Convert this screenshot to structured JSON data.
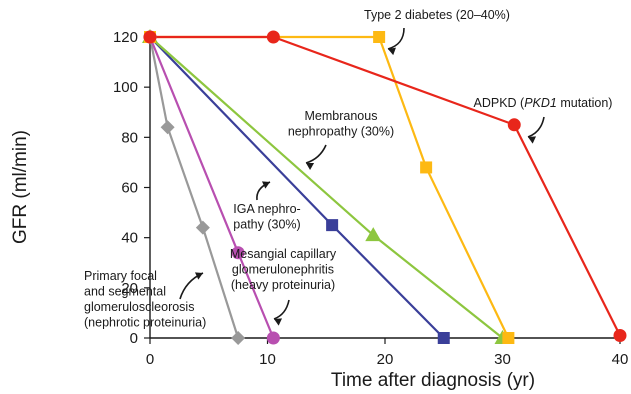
{
  "chart_data": {
    "type": "line",
    "xlabel": "Time after diagnosis (yr)",
    "ylabel": "GFR (ml/min)",
    "xlim": [
      0,
      40
    ],
    "ylim": [
      0,
      120
    ],
    "xticks": [
      0,
      10,
      20,
      30,
      40
    ],
    "yticks": [
      0,
      20,
      40,
      60,
      80,
      100,
      120
    ],
    "grid": false,
    "legend": "none",
    "series": [
      {
        "key": "adpkd",
        "color": "#e8261b",
        "marker": "circle",
        "points": [
          {
            "x": 0,
            "y": 120
          },
          {
            "x": 10.5,
            "y": 120
          },
          {
            "x": 31,
            "y": 85
          },
          {
            "x": 40,
            "y": 1
          }
        ]
      },
      {
        "key": "diabetes",
        "color": "#fdb913",
        "marker": "square",
        "points": [
          {
            "x": 0,
            "y": 120
          },
          {
            "x": 19.5,
            "y": 120
          },
          {
            "x": 23.5,
            "y": 68
          },
          {
            "x": 30.5,
            "y": 0
          }
        ]
      },
      {
        "key": "membranous",
        "color": "#8dc63f",
        "marker": "triangle",
        "points": [
          {
            "x": 0,
            "y": 120
          },
          {
            "x": 19,
            "y": 41
          },
          {
            "x": 30,
            "y": 0
          }
        ]
      },
      {
        "key": "iga",
        "color": "#3a3f99",
        "marker": "square",
        "points": [
          {
            "x": 0,
            "y": 120
          },
          {
            "x": 15.5,
            "y": 45
          },
          {
            "x": 25,
            "y": 0
          }
        ]
      },
      {
        "key": "mesangial",
        "color": "#b84fb0",
        "marker": "circle",
        "points": [
          {
            "x": 0,
            "y": 120
          },
          {
            "x": 7.5,
            "y": 34
          },
          {
            "x": 10.5,
            "y": 0
          }
        ]
      },
      {
        "key": "fsgs",
        "color": "#999999",
        "marker": "diamond",
        "points": [
          {
            "x": 0,
            "y": 120
          },
          {
            "x": 1.5,
            "y": 84
          },
          {
            "x": 4.5,
            "y": 44
          },
          {
            "x": 7.5,
            "y": 0
          }
        ]
      }
    ],
    "annotations": [
      {
        "key": "diabetes",
        "lines": [
          "Type 2 diabetes (20–40%)"
        ]
      },
      {
        "key": "adpkd",
        "lines": [
          "ADPKD (PKD1 mutation)"
        ]
      },
      {
        "key": "membranous",
        "lines": [
          "Membranous",
          "nephropathy (30%)"
        ]
      },
      {
        "key": "iga",
        "lines": [
          "IGA nephro-",
          "pathy (30%)"
        ]
      },
      {
        "key": "mesangial",
        "lines": [
          "Mesangial capillary",
          "glomerulonephritis",
          "(heavy proteinuria)"
        ]
      },
      {
        "key": "fsgs",
        "lines": [
          "Primary focal",
          "and segmental",
          "glomeruloscleorosis",
          "(nephrotic proteinuria)"
        ]
      }
    ]
  }
}
